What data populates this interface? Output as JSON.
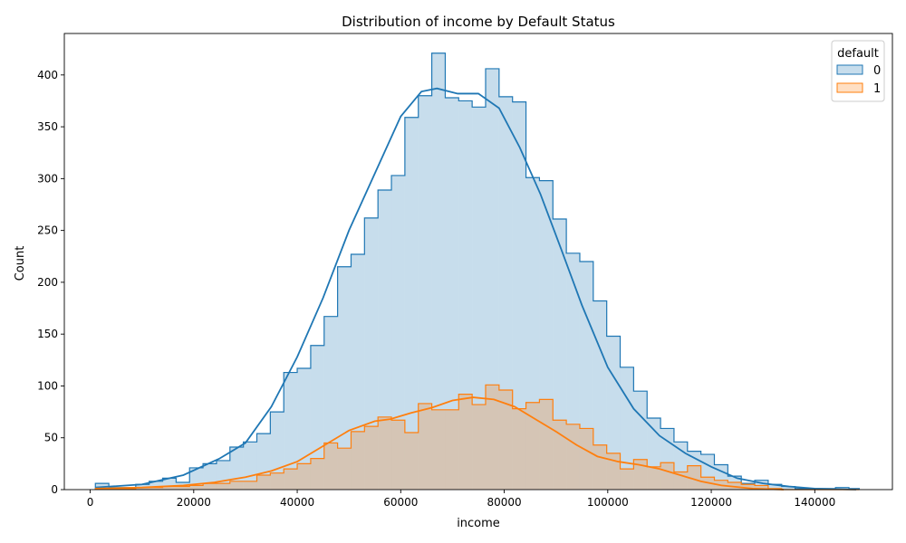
{
  "chart_data": {
    "type": "histogram",
    "title": "Distribution of income by Default Status",
    "xlabel": "income",
    "ylabel": "Count",
    "xlim": [
      -5000,
      155000
    ],
    "ylim": [
      0,
      440
    ],
    "xticks": [
      0,
      20000,
      40000,
      60000,
      80000,
      100000,
      120000,
      140000
    ],
    "yticks": [
      0,
      50,
      100,
      150,
      200,
      250,
      300,
      350,
      400
    ],
    "grid": false,
    "legend_placement": "top-right",
    "legend_title": "default",
    "bin_edges": [
      1000,
      3600,
      6200,
      8800,
      11400,
      14000,
      16600,
      19200,
      21800,
      24400,
      27000,
      29600,
      32200,
      34800,
      37400,
      40000,
      42600,
      45200,
      47800,
      50400,
      53000,
      55600,
      58200,
      60800,
      63400,
      66000,
      68600,
      71200,
      73800,
      76400,
      79000,
      81600,
      84200,
      86800,
      89400,
      92000,
      94600,
      97200,
      99800,
      102400,
      105000,
      107600,
      110200,
      112800,
      115400,
      118000,
      120600,
      123200,
      125800,
      128400,
      131000,
      133600,
      136200,
      138800,
      141400,
      144000,
      146600,
      148600
    ],
    "series": [
      {
        "name": "0",
        "color": "#1f77b4",
        "fill": "#c6dbef",
        "counts": [
          6,
          2,
          2,
          5,
          8,
          11,
          7,
          21,
          25,
          28,
          41,
          46,
          54,
          75,
          113,
          117,
          139,
          167,
          215,
          227,
          262,
          289,
          303,
          359,
          380,
          421,
          378,
          375,
          369,
          406,
          379,
          374,
          301,
          298,
          261,
          228,
          220,
          182,
          148,
          118,
          95,
          69,
          59,
          46,
          37,
          34,
          24,
          13,
          6,
          9,
          5,
          3,
          1,
          1,
          1,
          2,
          1
        ],
        "kde": [
          [
            1000,
            2
          ],
          [
            10000,
            5
          ],
          [
            18000,
            14
          ],
          [
            25000,
            30
          ],
          [
            30000,
            45
          ],
          [
            35000,
            80
          ],
          [
            40000,
            128
          ],
          [
            45000,
            185
          ],
          [
            50000,
            250
          ],
          [
            55000,
            305
          ],
          [
            60000,
            360
          ],
          [
            64000,
            384
          ],
          [
            67000,
            387
          ],
          [
            71000,
            382
          ],
          [
            75000,
            382
          ],
          [
            79000,
            368
          ],
          [
            83000,
            330
          ],
          [
            87000,
            285
          ],
          [
            91000,
            232
          ],
          [
            95000,
            178
          ],
          [
            100000,
            118
          ],
          [
            105000,
            78
          ],
          [
            110000,
            52
          ],
          [
            115000,
            35
          ],
          [
            120000,
            22
          ],
          [
            125000,
            11
          ],
          [
            130000,
            6
          ],
          [
            135000,
            3
          ],
          [
            140000,
            1
          ],
          [
            148000,
            0
          ]
        ]
      },
      {
        "name": "1",
        "color": "#ff7f0e",
        "fill": "#ffd7b3",
        "counts": [
          1,
          1,
          1,
          2,
          2,
          3,
          3,
          4,
          6,
          6,
          8,
          8,
          14,
          16,
          20,
          25,
          30,
          45,
          40,
          56,
          61,
          70,
          67,
          55,
          83,
          77,
          77,
          92,
          82,
          101,
          96,
          78,
          84,
          87,
          67,
          63,
          59,
          43,
          35,
          20,
          29,
          22,
          26,
          17,
          23,
          12,
          9,
          7,
          5,
          4,
          1,
          0,
          0,
          0,
          0,
          0,
          0
        ],
        "kde": [
          [
            1000,
            1
          ],
          [
            10000,
            2
          ],
          [
            18000,
            4
          ],
          [
            24000,
            7
          ],
          [
            30000,
            12
          ],
          [
            35000,
            18
          ],
          [
            40000,
            27
          ],
          [
            45000,
            42
          ],
          [
            50000,
            57
          ],
          [
            55000,
            66
          ],
          [
            58000,
            68
          ],
          [
            62000,
            74
          ],
          [
            66000,
            79
          ],
          [
            70000,
            86
          ],
          [
            74000,
            89
          ],
          [
            78000,
            87
          ],
          [
            82000,
            80
          ],
          [
            86000,
            68
          ],
          [
            90000,
            56
          ],
          [
            94000,
            43
          ],
          [
            98000,
            32
          ],
          [
            102000,
            27
          ],
          [
            106000,
            24
          ],
          [
            110000,
            20
          ],
          [
            114000,
            14
          ],
          [
            118000,
            8
          ],
          [
            122000,
            4
          ],
          [
            128000,
            1
          ],
          [
            134000,
            0
          ]
        ]
      }
    ]
  }
}
